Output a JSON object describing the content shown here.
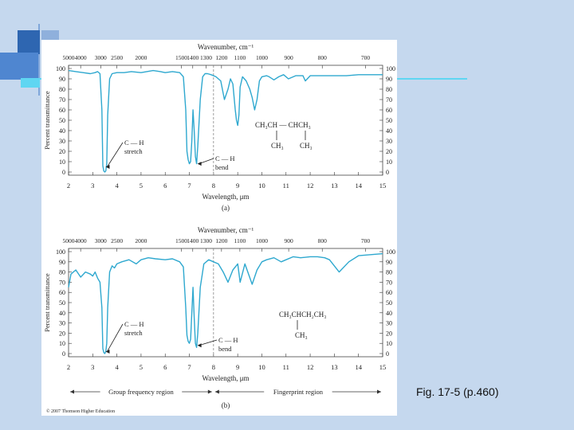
{
  "caption": "Fig. 17-5 (p.460)",
  "copyright": "© 2007 Thomson Higher Education",
  "colors": {
    "background": "#c5d8ee",
    "spectrum": "#2ea8cf",
    "accent_dark": "#2e66b1",
    "accent_cyan": "#5fd6f2"
  },
  "chart_data": [
    {
      "type": "line",
      "panel_label": "(a)",
      "top_axis_label": "Wavenumber, cm⁻¹",
      "top_ticks": [
        "5000",
        "4000",
        "3000",
        "2500",
        "2000",
        "1500",
        "1400",
        "1300",
        "1200",
        "1100",
        "1000",
        "900",
        "800",
        "700"
      ],
      "top_tick_wavelengths": [
        2.0,
        2.5,
        3.33,
        4.0,
        5.0,
        6.67,
        7.14,
        7.69,
        8.33,
        9.09,
        10.0,
        11.11,
        12.5,
        14.29
      ],
      "xlabel": "Wavelength, μm",
      "ylabel": "Percent transmittance",
      "xlim": [
        2,
        15
      ],
      "ylim": [
        0,
        100
      ],
      "x_ticks": [
        "2",
        "3",
        "4",
        "5",
        "6",
        "7",
        "8",
        "9",
        "10",
        "11",
        "12",
        "13",
        "14",
        "15"
      ],
      "y_ticks": [
        "0",
        "10",
        "20",
        "30",
        "40",
        "50",
        "60",
        "70",
        "80",
        "90",
        "100"
      ],
      "divider_x": 8,
      "molecule": [
        "CH₃CH — CHCH₃",
        "CH₃",
        "CH₃"
      ],
      "annotations": [
        {
          "lines": [
            "C — H",
            "stretch"
          ],
          "points_to": [
            3.5,
            5
          ]
        },
        {
          "lines": [
            "C — H",
            "bend"
          ],
          "points_to": [
            7.3,
            8
          ]
        }
      ],
      "x": [
        2.0,
        2.3,
        2.6,
        2.9,
        3.1,
        3.2,
        3.3,
        3.38,
        3.42,
        3.46,
        3.5,
        3.54,
        3.58,
        3.62,
        3.7,
        3.8,
        4.0,
        4.3,
        4.6,
        5.0,
        5.5,
        5.8,
        6.0,
        6.3,
        6.6,
        6.75,
        6.85,
        6.9,
        6.95,
        7.0,
        7.05,
        7.1,
        7.15,
        7.2,
        7.25,
        7.3,
        7.35,
        7.45,
        7.55,
        7.65,
        7.75,
        7.9,
        8.1,
        8.3,
        8.45,
        8.6,
        8.7,
        8.8,
        8.9,
        8.95,
        9.0,
        9.05,
        9.1,
        9.2,
        9.35,
        9.5,
        9.6,
        9.7,
        9.8,
        9.9,
        10.0,
        10.2,
        10.3,
        10.5,
        10.7,
        10.9,
        11.1,
        11.4,
        11.7,
        11.8,
        12.0,
        12.5,
        13.0,
        13.5,
        14.0,
        14.5,
        15.0
      ],
      "y": [
        98,
        97,
        96,
        95,
        96,
        97,
        95,
        60,
        6,
        1,
        0,
        1,
        8,
        55,
        90,
        95,
        96,
        96,
        97,
        96,
        98,
        97,
        96,
        97,
        96,
        92,
        60,
        20,
        12,
        8,
        10,
        30,
        60,
        40,
        15,
        8,
        25,
        70,
        92,
        95,
        95,
        94,
        92,
        88,
        70,
        80,
        90,
        85,
        60,
        50,
        45,
        55,
        82,
        92,
        88,
        80,
        72,
        60,
        70,
        88,
        92,
        93,
        92,
        89,
        92,
        94,
        90,
        93,
        93,
        88,
        93,
        93,
        93,
        93,
        94,
        94,
        94
      ]
    },
    {
      "type": "line",
      "panel_label": "(b)",
      "top_axis_label": "Wavenumber, cm⁻¹",
      "top_ticks": [
        "5000",
        "4000",
        "3000",
        "2500",
        "2000",
        "1500",
        "1400",
        "1300",
        "1200",
        "1100",
        "1000",
        "900",
        "800",
        "700"
      ],
      "top_tick_wavelengths": [
        2.0,
        2.5,
        3.33,
        4.0,
        5.0,
        6.67,
        7.14,
        7.69,
        8.33,
        9.09,
        10.0,
        11.11,
        12.5,
        14.29
      ],
      "xlabel": "Wavelength, μm",
      "ylabel": "Percent transmittance",
      "xlim": [
        2,
        15
      ],
      "ylim": [
        0,
        100
      ],
      "x_ticks": [
        "2",
        "3",
        "4",
        "5",
        "6",
        "7",
        "8",
        "9",
        "10",
        "11",
        "12",
        "13",
        "14",
        "15"
      ],
      "y_ticks": [
        "0",
        "10",
        "20",
        "30",
        "40",
        "50",
        "60",
        "70",
        "80",
        "90",
        "100"
      ],
      "divider_x": 8,
      "molecule": [
        "CH₃CHCH₂CH₃",
        "CH₃"
      ],
      "annotations": [
        {
          "lines": [
            "C — H",
            "stretch"
          ],
          "points_to": [
            3.5,
            2
          ]
        },
        {
          "lines": [
            "C — H",
            "bend"
          ],
          "points_to": [
            7.3,
            8
          ]
        }
      ],
      "regions": [
        {
          "label": "Group frequency region",
          "from": 2,
          "to": 8
        },
        {
          "label": "Fingerprint region",
          "from": 8,
          "to": 15
        }
      ],
      "x": [
        2.0,
        2.1,
        2.3,
        2.5,
        2.7,
        2.9,
        3.0,
        3.1,
        3.2,
        3.3,
        3.38,
        3.42,
        3.46,
        3.5,
        3.54,
        3.58,
        3.62,
        3.7,
        3.8,
        3.9,
        4.0,
        4.2,
        4.5,
        4.8,
        5.0,
        5.3,
        5.6,
        6.0,
        6.3,
        6.6,
        6.75,
        6.85,
        6.9,
        6.95,
        7.0,
        7.05,
        7.1,
        7.15,
        7.2,
        7.25,
        7.3,
        7.35,
        7.45,
        7.6,
        7.8,
        8.0,
        8.2,
        8.4,
        8.6,
        8.8,
        9.0,
        9.1,
        9.3,
        9.6,
        9.8,
        10.0,
        10.2,
        10.5,
        10.8,
        11.0,
        11.3,
        11.6,
        12.0,
        12.3,
        12.6,
        12.8,
        13.0,
        13.2,
        13.6,
        14.0,
        14.5,
        15.0
      ],
      "y": [
        65,
        78,
        82,
        75,
        80,
        78,
        76,
        80,
        74,
        70,
        45,
        5,
        1,
        0,
        2,
        10,
        45,
        80,
        86,
        84,
        88,
        90,
        92,
        88,
        92,
        94,
        93,
        92,
        93,
        90,
        85,
        45,
        18,
        12,
        10,
        14,
        40,
        65,
        35,
        10,
        6,
        20,
        65,
        88,
        92,
        90,
        88,
        80,
        70,
        82,
        88,
        70,
        88,
        68,
        82,
        90,
        92,
        94,
        90,
        92,
        95,
        94,
        95,
        95,
        94,
        92,
        86,
        80,
        90,
        96,
        97,
        98
      ]
    }
  ]
}
